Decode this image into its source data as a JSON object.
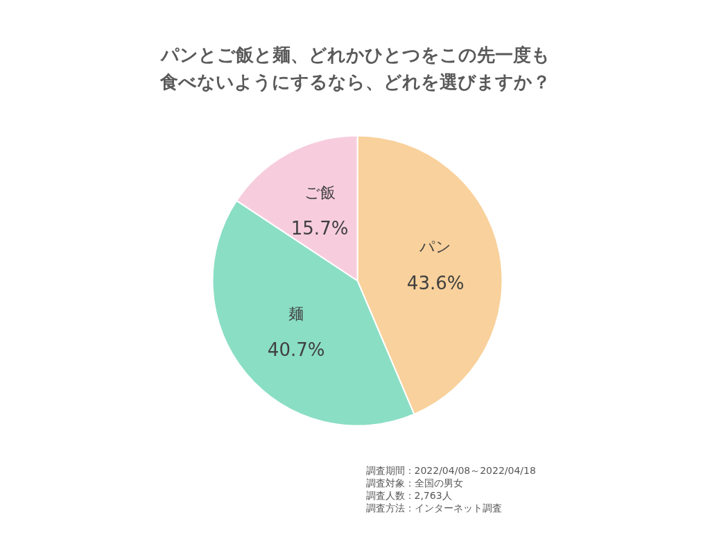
{
  "chart_data": {
    "type": "pie",
    "title": "パンとご飯と麺、どれかひとつをこの先一度も食べないようにするなら、どれを選びますか？",
    "categories": [
      "パン",
      "麺",
      "ご飯"
    ],
    "values": [
      43.6,
      40.7,
      15.7
    ],
    "colors": [
      "#f9d19c",
      "#8adec4",
      "#f7cddd"
    ],
    "value_labels": [
      "43.6%",
      "40.7%",
      "15.7%"
    ],
    "annotations": [
      "調査期間：2022/04/08～2022/04/18",
      "調査対象：全国の男女",
      "調査人数：2,763人",
      "調査方法：インターネット調査"
    ]
  }
}
